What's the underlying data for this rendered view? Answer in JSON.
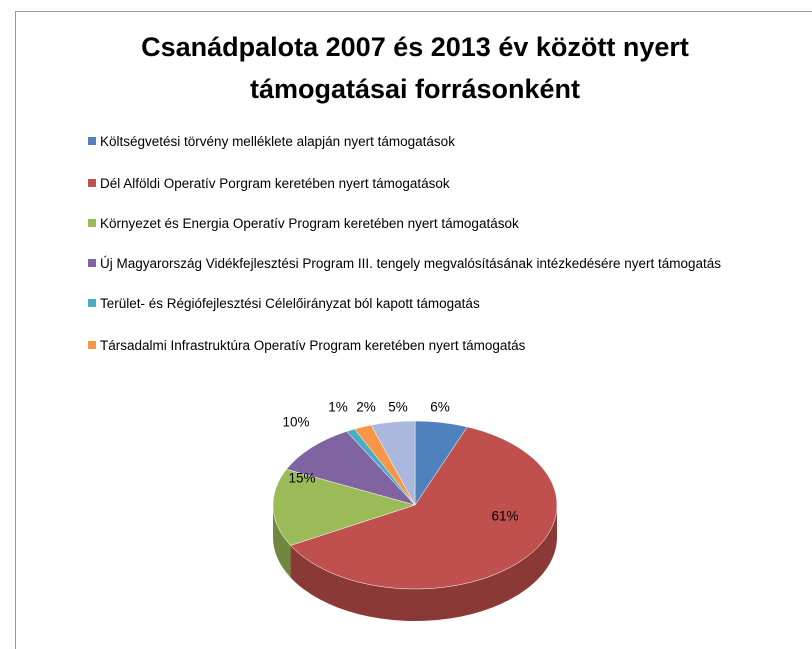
{
  "chart_data": {
    "type": "pie",
    "title": "Csanádpalota 2007 és 2013 év között nyert támogatásai forrásonként",
    "categories": [
      "Költségvetési törvény melléklete alapján  nyert támogatások",
      "Dél Alföldi Operatív Porgram keretében nyert támogatások",
      "Környezet és Energia Operatív Program keretében nyert támogatások",
      "Új Magyarország Vidékfejlesztési Program III. tengely megvalósításának  intézkedésére nyert támogatás",
      "Terület- és Régiófejlesztési Célelőirányzat ból kapott  támogatás",
      "Társadalmi Infrastruktúra  Operatív Program keretében nyert támogatás",
      null
    ],
    "values": [
      6,
      61,
      15,
      10,
      1,
      2,
      5
    ],
    "value_labels": [
      "6%",
      "61%",
      "15%",
      "10%",
      "1%",
      "2%",
      "5%"
    ],
    "colors": [
      "#4f81bd",
      "#c0504d",
      "#9bbb59",
      "#8064a2",
      "#4bacc6",
      "#f79646",
      "#a9b8dc"
    ],
    "legend": "top"
  }
}
